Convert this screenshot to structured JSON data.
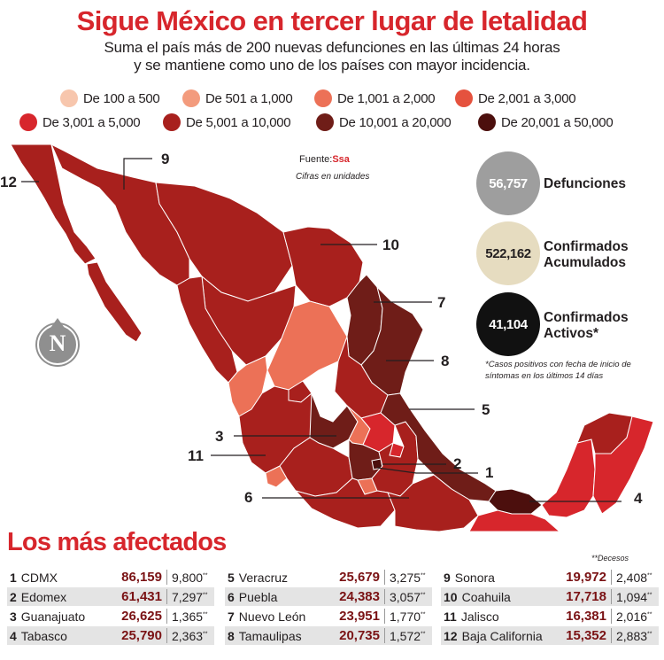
{
  "header": {
    "title": "Sigue México en tercer lugar de letalidad",
    "subtitle_line1": "Suma el país más de 200 nuevas defunciones en las últimas 24 horas",
    "subtitle_line2": "y se mantiene como uno de los países con mayor incidencia."
  },
  "legend": [
    {
      "label": "De 100 a 500",
      "color": "#f7c6ad"
    },
    {
      "label": "De 501 a 1,000",
      "color": "#f39b7d"
    },
    {
      "label": "De 1,001 a 2,000",
      "color": "#ec7157"
    },
    {
      "label": "De 2,001 a 3,000",
      "color": "#e5523e"
    },
    {
      "label": "De 3,001 a 5,000",
      "color": "#d7262c"
    },
    {
      "label": "De 5,001 a 10,000",
      "color": "#a8201d"
    },
    {
      "label": "De 10,001 a 20,000",
      "color": "#6f1d18"
    },
    {
      "label": "De 20,001 a 50,000",
      "color": "#4c0f0d"
    }
  ],
  "source": {
    "label": "Fuente:",
    "name": "Ssa",
    "note": "Cifras en unidades"
  },
  "compass": "N",
  "map_callouts": [
    "12",
    "9",
    "10",
    "7",
    "8",
    "5",
    "3",
    "2",
    "1",
    "11",
    "6",
    "4"
  ],
  "stats": [
    {
      "value": "56,757",
      "label_line1": "Defunciones",
      "label_line2": "",
      "circle": "#9e9e9e",
      "text": "#ffffff"
    },
    {
      "value": "522,162",
      "label_line1": "Confirmados",
      "label_line2": "Acumulados",
      "circle": "#e6dcc0",
      "text": "#231f20"
    },
    {
      "value": "41,104",
      "label_line1": "Confirmados",
      "label_line2": "Activos*",
      "circle": "#111111",
      "text": "#ffffff"
    }
  ],
  "footnote_line1": "*Casos positivos con fecha de inicio de",
  "footnote_line2": "síntomas en los últimos 14 días",
  "ranking": {
    "title": "Los más afectados",
    "deaths_note": "**Decesos",
    "suffix": "**",
    "rows": [
      {
        "rank": "1",
        "state": "CDMX",
        "cases": "86,159",
        "deaths": "9,800"
      },
      {
        "rank": "2",
        "state": "Edomex",
        "cases": "61,431",
        "deaths": "7,297"
      },
      {
        "rank": "3",
        "state": "Guanajuato",
        "cases": "26,625",
        "deaths": "1,365"
      },
      {
        "rank": "4",
        "state": "Tabasco",
        "cases": "25,790",
        "deaths": "2,363"
      },
      {
        "rank": "5",
        "state": "Veracruz",
        "cases": "25,679",
        "deaths": "3,275"
      },
      {
        "rank": "6",
        "state": "Puebla",
        "cases": "24,383",
        "deaths": "3,057"
      },
      {
        "rank": "7",
        "state": "Nuevo León",
        "cases": "23,951",
        "deaths": "1,770"
      },
      {
        "rank": "8",
        "state": "Tamaulipas",
        "cases": "20,735",
        "deaths": "1,572"
      },
      {
        "rank": "9",
        "state": "Sonora",
        "cases": "19,972",
        "deaths": "2,408"
      },
      {
        "rank": "10",
        "state": "Coahuila",
        "cases": "17,718",
        "deaths": "1,094"
      },
      {
        "rank": "11",
        "state": "Jalisco",
        "cases": "16,381",
        "deaths": "2,016"
      },
      {
        "rank": "12",
        "state": "Baja California",
        "cases": "15,352",
        "deaths": "2,883"
      }
    ]
  }
}
